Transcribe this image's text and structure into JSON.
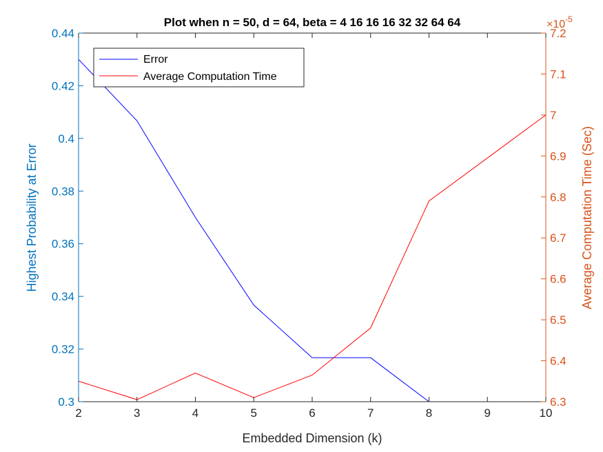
{
  "chart_data": {
    "type": "line",
    "title": "Plot when n = 50, d = 64, beta = 4  16  16  16  32  32  64  64",
    "xlabel": "Embedded Dimension (k)",
    "ylabel_left": "Highest Probability at Error",
    "ylabel_right": "Average Computation Time (Sec)",
    "right_exponent": "×10",
    "right_exponent_power": "-5",
    "x": [
      2,
      3,
      4,
      5,
      6,
      7,
      8,
      9,
      10
    ],
    "xlim": [
      2,
      10
    ],
    "xticks": [
      2,
      3,
      4,
      5,
      6,
      7,
      8,
      9,
      10
    ],
    "ylim_left": [
      0.3,
      0.44
    ],
    "yticks_left": [
      0.3,
      0.32,
      0.34,
      0.36,
      0.38,
      0.4,
      0.42,
      0.44
    ],
    "ylim_right": [
      6.3,
      7.2
    ],
    "yticks_right": [
      6.3,
      6.4,
      6.5,
      6.6,
      6.7,
      6.8,
      6.9,
      7,
      7.1,
      7.2
    ],
    "legend_position": "top-left",
    "grid": false,
    "left_axis_color": "#0072BD",
    "right_axis_color": "#D95319",
    "series": [
      {
        "name": "Error",
        "axis": "left",
        "color": "#0000FF",
        "values": [
          0.43,
          0.4067,
          0.37,
          0.3367,
          0.3167,
          0.3167,
          0.3,
          0.3,
          0.3
        ]
      },
      {
        "name": "Average Computation Time",
        "axis": "right",
        "color": "#FF0000",
        "values": [
          6.35,
          6.305,
          6.37,
          6.31,
          6.365,
          6.48,
          6.79,
          6.895,
          7.0
        ]
      }
    ]
  }
}
